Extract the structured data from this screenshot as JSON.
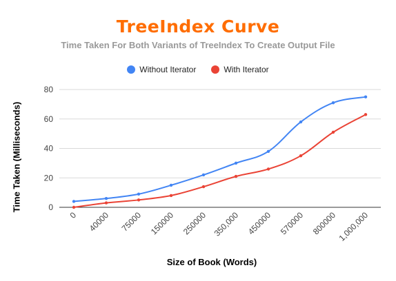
{
  "chart_data": {
    "type": "line",
    "title": "TreeIndex Curve",
    "subtitle": "Time Taken For Both Variants of TreeIndex To Create Output File",
    "xlabel": "Size of Book (Words)",
    "ylabel": "Time Taken (Milliseconds)",
    "categories": [
      "0",
      "40000",
      "75000",
      "150000",
      "250000",
      "350,000",
      "450000",
      "570000",
      "800000",
      "1,000,000"
    ],
    "ylim": [
      0,
      80
    ],
    "yticks": [
      "0",
      "20",
      "40",
      "60",
      "80"
    ],
    "grid": true,
    "legend_position": "top",
    "series": [
      {
        "name": "Without Iterator",
        "color": "#4285f4",
        "values": [
          4,
          6,
          9,
          15,
          22,
          30,
          38,
          58,
          71,
          75
        ]
      },
      {
        "name": "With Iterator",
        "color": "#ea4335",
        "values": [
          0,
          3,
          5,
          8,
          14,
          21,
          26,
          35,
          51,
          63
        ]
      }
    ]
  }
}
